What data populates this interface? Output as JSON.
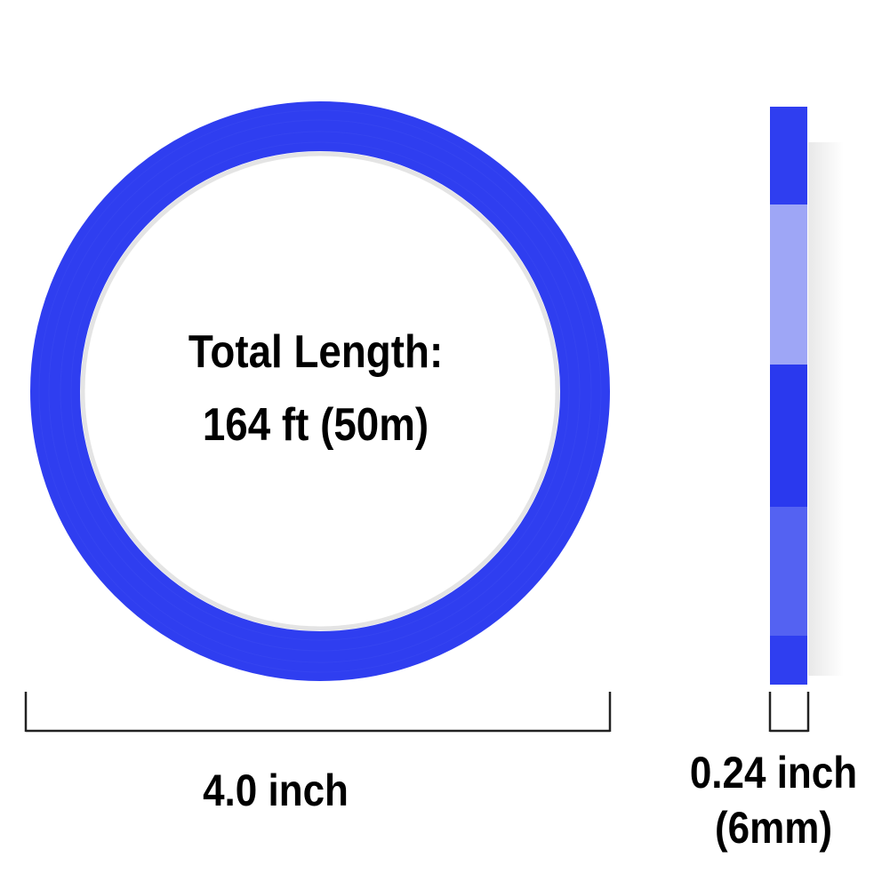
{
  "product": {
    "ring_label_line1": "Total Length:",
    "ring_label_line2": "164 ft (50m)",
    "diameter_label": "4.0 inch",
    "width_label_line1": "0.24 inch",
    "width_label_line2": "(6mm)"
  },
  "colors": {
    "tape_blue": "#2f3ef0",
    "tape_light": "#9ea6f6",
    "tape_medium": "#5462f2",
    "core": "#e6e6e6"
  }
}
